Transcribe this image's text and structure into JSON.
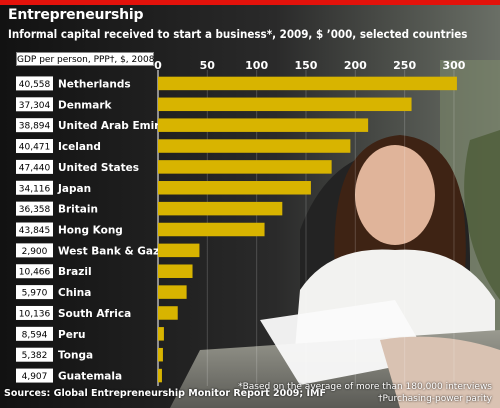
{
  "title": "Entrepreneurship",
  "subtitle": "Informal capital received to start a business*, 2009, $ ’000, selected countries",
  "gdp_header": "GDP per person, PPP†, $, 2008",
  "source": "Sources: Global Entrepreneurship Monitor Report 2009; IMF",
  "footnotes": [
    "*Based on the average of more than 180,000 interviews",
    "†Purchasing-power parity"
  ],
  "colors": {
    "bar": "#d8b400",
    "accent": "#e3120b",
    "label_box": "#ffffff",
    "text": "#ffffff"
  },
  "chart_data": {
    "type": "bar",
    "orientation": "horizontal",
    "categories": [
      "Netherlands",
      "Denmark",
      "United Arab Emirates",
      "Iceland",
      "United States",
      "Japan",
      "Britain",
      "Hong Kong",
      "West Bank & Gaza",
      "Brazil",
      "China",
      "South Africa",
      "Peru",
      "Tonga",
      "Guatemala"
    ],
    "gdp_per_person": [
      "40,558",
      "37,304",
      "38,894",
      "40,471",
      "47,440",
      "34,116",
      "36,358",
      "43,845",
      "2,900",
      "10,466",
      "5,970",
      "10,136",
      "8,594",
      "5,382",
      "4,907"
    ],
    "values": [
      303,
      257,
      213,
      195,
      176,
      155,
      126,
      108,
      42,
      35,
      29,
      20,
      6,
      5,
      4
    ],
    "xlim": [
      0,
      300
    ],
    "xticks": [
      0,
      50,
      100,
      150,
      200,
      250,
      300
    ],
    "grid": true
  }
}
